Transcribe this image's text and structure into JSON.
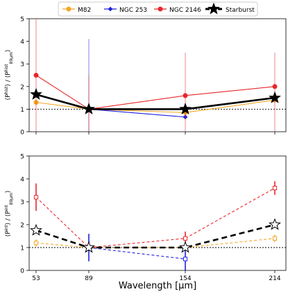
{
  "legend": {
    "entries": [
      {
        "label": "M82",
        "color": "#f5a623",
        "marker": "circle",
        "line": "solid"
      },
      {
        "label": "NGC 253",
        "color": "#1f1fe0",
        "marker": "diamond",
        "line": "solid"
      },
      {
        "label": "NGC 2146",
        "color": "#e8262a",
        "marker": "circle",
        "line": "solid"
      },
      {
        "label": "Starburst",
        "color": "#000000",
        "marker": "star",
        "line": "thick-dashed"
      }
    ],
    "placement": "top-center, above panels"
  },
  "chart_data": [
    {
      "type": "line",
      "panel": "top",
      "ylabel": "⟨P^{hist}⟩ / ⟨P^{hist}_{89µm}⟩",
      "x": [
        53,
        89,
        154,
        214
      ],
      "xticks": [
        53,
        89,
        154,
        214
      ],
      "xtick_labels_shown": false,
      "ylim": [
        0,
        5
      ],
      "yticks": [
        0,
        1,
        2,
        3,
        4,
        5
      ],
      "reference_line": {
        "y": 1,
        "style": "dotted",
        "color": "#000000"
      },
      "series": [
        {
          "name": "M82",
          "color": "#f5a623",
          "line": "solid",
          "marker": "circle",
          "x": [
            53,
            89,
            154,
            214
          ],
          "values": [
            1.3,
            1.0,
            0.85,
            1.4
          ],
          "err_low": [
            null,
            null,
            null,
            null
          ],
          "err_high": [
            null,
            null,
            null,
            null
          ]
        },
        {
          "name": "NGC 253",
          "color": "#1f1fe0",
          "line": "solid",
          "marker": "diamond",
          "x": [
            89,
            154
          ],
          "values": [
            1.0,
            0.65
          ],
          "err_low": [
            0,
            null
          ],
          "err_high": [
            4.1,
            null
          ]
        },
        {
          "name": "NGC 2146",
          "color": "#e8262a",
          "line": "solid",
          "marker": "circle",
          "x": [
            53,
            89,
            154,
            214
          ],
          "values": [
            2.5,
            1.0,
            1.6,
            2.0
          ],
          "err_low": [
            0,
            0,
            0,
            0
          ],
          "err_high": [
            5,
            2.5,
            3.5,
            3.5
          ]
        },
        {
          "name": "Starburst",
          "color": "#000000",
          "line": "thick-solid",
          "marker": "star",
          "x": [
            53,
            89,
            154,
            214
          ],
          "values": [
            1.65,
            1.0,
            1.0,
            1.5
          ],
          "err_low": [
            null,
            null,
            null,
            null
          ],
          "err_high": [
            null,
            null,
            null,
            null
          ]
        }
      ]
    },
    {
      "type": "line",
      "panel": "bottom",
      "ylabel": "⟨P^{int}⟩ / ⟨P^{int}_{89µm}⟩",
      "xlabel": "Wavelength [µm]",
      "x": [
        53,
        89,
        154,
        214
      ],
      "xticks": [
        53,
        89,
        154,
        214
      ],
      "xtick_labels": [
        "53",
        "89",
        "154",
        "214"
      ],
      "ylim": [
        0,
        5
      ],
      "yticks": [
        0,
        1,
        2,
        3,
        4,
        5
      ],
      "reference_line": {
        "y": 1,
        "style": "dotted",
        "color": "#000000"
      },
      "series": [
        {
          "name": "M82",
          "color": "#f5a623",
          "line": "dashed",
          "marker": "square",
          "x": [
            53,
            89,
            154,
            214
          ],
          "values": [
            1.2,
            1.0,
            1.0,
            1.4
          ],
          "err_low": [
            1.05,
            null,
            null,
            1.25
          ],
          "err_high": [
            1.35,
            null,
            null,
            1.55
          ]
        },
        {
          "name": "NGC 253",
          "color": "#1f1fe0",
          "line": "dashed",
          "marker": "square",
          "x": [
            89,
            154
          ],
          "values": [
            1.0,
            0.5
          ],
          "err_low": [
            0.4,
            0.0
          ],
          "err_high": [
            1.6,
            0.9
          ]
        },
        {
          "name": "NGC 2146",
          "color": "#e8262a",
          "line": "dashed",
          "marker": "square",
          "x": [
            53,
            89,
            154,
            214
          ],
          "values": [
            3.2,
            1.0,
            1.4,
            3.6
          ],
          "err_low": [
            2.6,
            null,
            1.1,
            3.3
          ],
          "err_high": [
            3.8,
            null,
            1.7,
            3.9
          ]
        },
        {
          "name": "Starburst",
          "color": "#000000",
          "line": "thick-dashed",
          "marker": "star",
          "x": [
            53,
            89,
            154,
            214
          ],
          "values": [
            1.75,
            1.0,
            1.0,
            2.0
          ],
          "err_low": [
            null,
            null,
            null,
            null
          ],
          "err_high": [
            null,
            null,
            null,
            null
          ]
        }
      ]
    }
  ]
}
